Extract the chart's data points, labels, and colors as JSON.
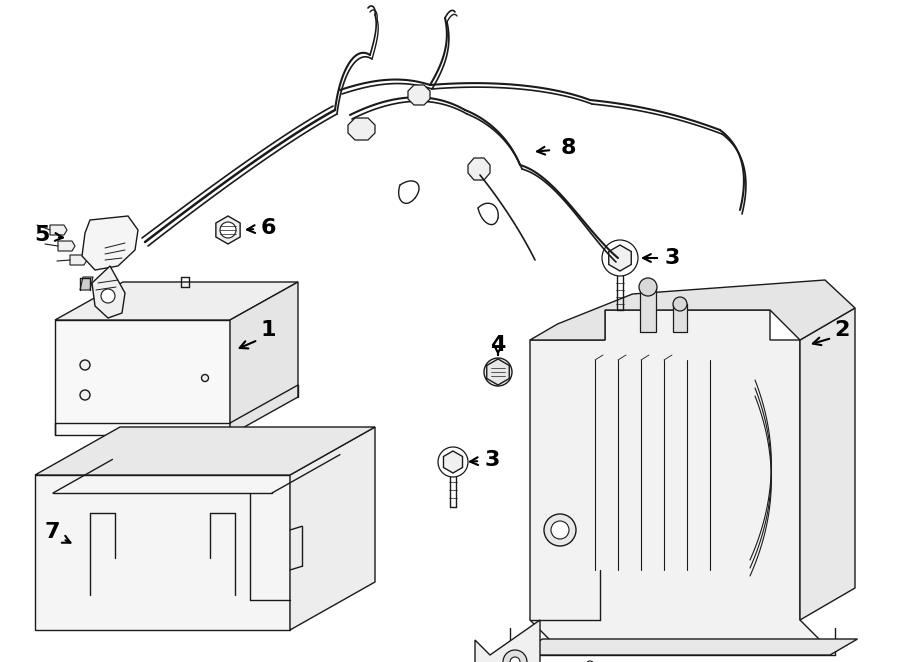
{
  "bg_color": "#ffffff",
  "line_color": "#1a1a1a",
  "lw": 1.0,
  "fig_width": 9.0,
  "fig_height": 6.62,
  "dpi": 100,
  "xmax": 900,
  "ymax": 662
}
